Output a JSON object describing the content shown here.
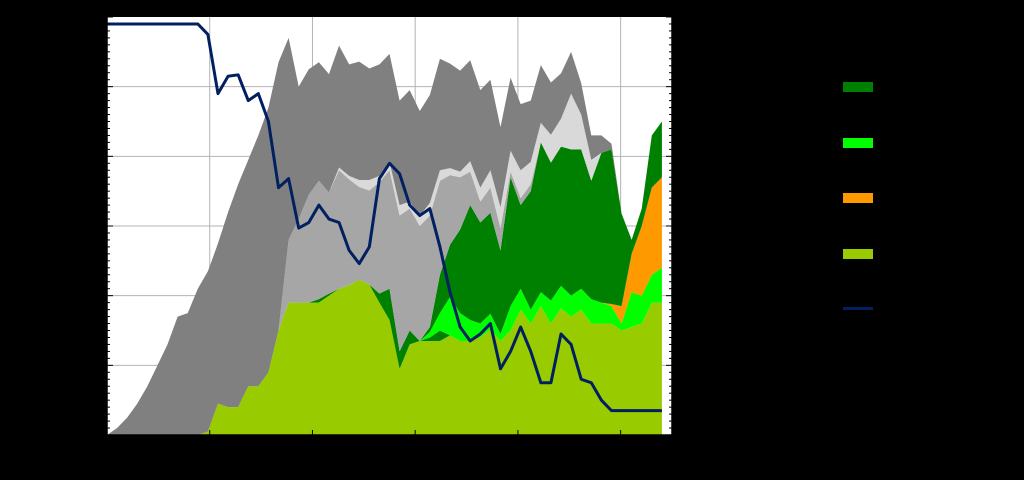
{
  "chart_data": {
    "type": "area",
    "x": [
      0,
      1,
      2,
      3,
      4,
      5,
      6,
      7,
      8,
      9,
      10,
      11,
      12,
      13,
      14,
      15,
      16,
      17,
      18,
      19,
      20,
      21,
      22,
      23,
      24,
      25,
      26,
      27,
      28,
      29,
      30,
      31,
      32,
      33,
      34,
      35,
      36,
      37,
      38,
      39,
      40,
      41,
      42,
      43,
      44,
      45,
      46,
      47,
      48,
      49,
      50,
      51,
      52,
      53,
      54,
      55
    ],
    "xlim": [
      0,
      56
    ],
    "ylim": [
      0,
      60
    ],
    "grid": true,
    "series": [
      {
        "key": "light-green",
        "color": "#99cc00",
        "values": [
          0,
          0,
          0,
          0,
          0,
          0,
          0,
          0,
          0,
          0,
          0.5,
          4.5,
          4,
          4,
          7,
          7,
          9,
          15,
          19,
          19,
          19,
          19,
          20,
          21,
          21.5,
          22.3,
          21.6,
          19,
          16.5,
          9.5,
          13,
          13.5,
          13.5,
          13.5,
          14.3,
          13.5,
          13.5,
          14,
          15.2,
          13.5,
          15,
          18,
          16,
          18.5,
          16,
          18.2,
          17,
          18,
          16,
          16,
          16,
          15,
          15.5,
          16,
          19,
          19
        ]
      },
      {
        "key": "dark-green-low",
        "color": "#008000",
        "values": [
          0,
          0,
          0,
          0,
          0,
          0,
          0,
          0,
          0,
          0,
          0,
          0,
          0,
          0,
          0,
          0,
          0,
          0,
          0,
          0,
          0,
          0.5,
          0.3,
          0,
          0,
          0,
          0,
          1.3,
          4.5,
          2.5,
          2,
          0,
          0.5,
          1.5,
          0,
          0,
          0,
          0,
          0,
          0,
          0,
          0,
          0,
          0,
          0,
          0,
          0,
          0,
          0,
          0,
          0,
          0,
          0,
          0,
          0,
          0
        ]
      },
      {
        "key": "bright-green",
        "color": "#00ff00",
        "values": [
          0,
          0,
          0,
          0,
          0,
          0,
          0,
          0,
          0,
          0,
          0,
          0,
          0,
          0,
          0,
          0,
          0,
          0,
          0,
          0,
          0,
          0,
          0,
          0,
          0,
          0,
          0,
          0,
          0,
          0,
          0,
          0,
          0.8,
          2.5,
          5.5,
          4,
          3,
          2,
          2.2,
          1,
          3.5,
          3,
          2,
          2,
          3.3,
          3.2,
          3,
          3,
          3.5,
          3,
          2.5,
          1,
          5,
          4,
          4,
          5
        ]
      },
      {
        "key": "orange",
        "color": "#ff9900",
        "values": [
          0,
          0,
          0,
          0,
          0,
          0,
          0,
          0,
          0,
          0,
          0,
          0,
          0,
          0,
          0,
          0,
          0,
          0,
          0,
          0,
          0,
          0,
          0,
          0,
          0,
          0,
          0,
          0,
          0,
          0,
          0,
          0,
          0,
          0,
          0,
          0,
          0,
          0,
          0,
          0,
          0,
          0,
          0,
          0,
          0,
          0,
          0,
          0,
          0,
          0,
          0.3,
          2.5,
          5.5,
          10,
          12.5,
          13
        ]
      },
      {
        "key": "dark-green",
        "color": "#008000",
        "values": [
          0,
          0,
          0,
          0,
          0,
          0,
          0,
          0,
          0,
          0,
          0,
          0,
          0,
          0,
          0,
          0,
          0,
          0,
          0,
          0,
          0,
          0,
          0,
          0,
          0,
          0,
          0,
          0,
          0,
          0,
          0,
          0,
          0.7,
          5.5,
          7.5,
          12,
          16.5,
          14.5,
          14.5,
          12,
          18.5,
          12,
          17,
          21.5,
          19.8,
          20,
          21,
          20,
          17,
          21.5,
          22.2,
          13.3,
          2,
          2.5,
          7.5,
          8
        ]
      },
      {
        "key": "medium-grey",
        "color": "#a6a6a6",
        "values": [
          0,
          0,
          0,
          0,
          0,
          0,
          0,
          0,
          0,
          0,
          0,
          0,
          0,
          0,
          0,
          0,
          0,
          0,
          9,
          12,
          15.5,
          17,
          14.5,
          17,
          15.2,
          13.3,
          13.5,
          16,
          17,
          19.5,
          17.5,
          16.5,
          16,
          13.5,
          10,
          7.5,
          4.8,
          3,
          3.6,
          3.2,
          0.8,
          1,
          1,
          0,
          0,
          0,
          0,
          0,
          0,
          0,
          0,
          0,
          0,
          0,
          0,
          0
        ]
      },
      {
        "key": "light-grey",
        "color": "#d9d9d9",
        "values": [
          0,
          0,
          0,
          0,
          0,
          0,
          0,
          0,
          0,
          0,
          0,
          0,
          0,
          0,
          0,
          0,
          0,
          0,
          0,
          0,
          0,
          0,
          0,
          0.4,
          0.5,
          1,
          1.5,
          0.9,
          1.2,
          1.5,
          1,
          1.5,
          1.8,
          1.5,
          1,
          0.8,
          1.5,
          2,
          2.5,
          3,
          3,
          4,
          3.2,
          2.8,
          4,
          4,
          8,
          5,
          3,
          0,
          0,
          0,
          0,
          0,
          0,
          0
        ]
      },
      {
        "key": "dark-grey",
        "color": "#808080",
        "values": [
          0,
          1,
          2.5,
          4.5,
          7,
          10,
          13,
          17,
          17.5,
          21,
          23,
          23,
          28,
          32,
          32.5,
          36,
          38,
          38.5,
          29,
          19,
          18,
          17,
          17,
          17.5,
          16,
          17,
          16,
          16,
          15.5,
          15,
          16,
          15,
          15.5,
          16,
          15,
          14.5,
          14.5,
          14,
          13,
          11.5,
          10.5,
          9.5,
          8.8,
          8.3,
          7.5,
          6.5,
          6,
          4.5,
          3.5,
          2.5,
          0.8,
          0,
          0,
          0,
          0,
          0
        ]
      }
    ],
    "line": {
      "key": "navy-line",
      "color": "#002060",
      "values": [
        59,
        59,
        59,
        59,
        59,
        59,
        59,
        59,
        59,
        59,
        57.5,
        49,
        51.5,
        51.7,
        48,
        49,
        45,
        35.5,
        36.8,
        29.7,
        30.5,
        33,
        31,
        30.5,
        26.5,
        24.6,
        27,
        36.8,
        39,
        37.5,
        33,
        31.5,
        32.5,
        27,
        20.5,
        15.5,
        13.5,
        14.5,
        16,
        9.5,
        12,
        15.5,
        12,
        7.5,
        7.5,
        14.5,
        13,
        8,
        7.5,
        5,
        3.5,
        3.5,
        3.5,
        3.5,
        3.5,
        3.5
      ]
    }
  },
  "legend": {
    "items": [
      {
        "key": "dark-green",
        "color": "#008000",
        "kind": "swatch",
        "label": ""
      },
      {
        "key": "bright-green",
        "color": "#00ff00",
        "kind": "swatch",
        "label": ""
      },
      {
        "key": "orange",
        "color": "#ff9900",
        "kind": "swatch",
        "label": ""
      },
      {
        "key": "light-green",
        "color": "#99cc00",
        "kind": "swatch",
        "label": ""
      },
      {
        "key": "navy-line",
        "color": "#002060",
        "kind": "line",
        "label": ""
      }
    ]
  },
  "colors": {
    "background": "#000000",
    "plot_background": "#ffffff",
    "grid": "#b3b3b3",
    "axis": "#000000"
  }
}
